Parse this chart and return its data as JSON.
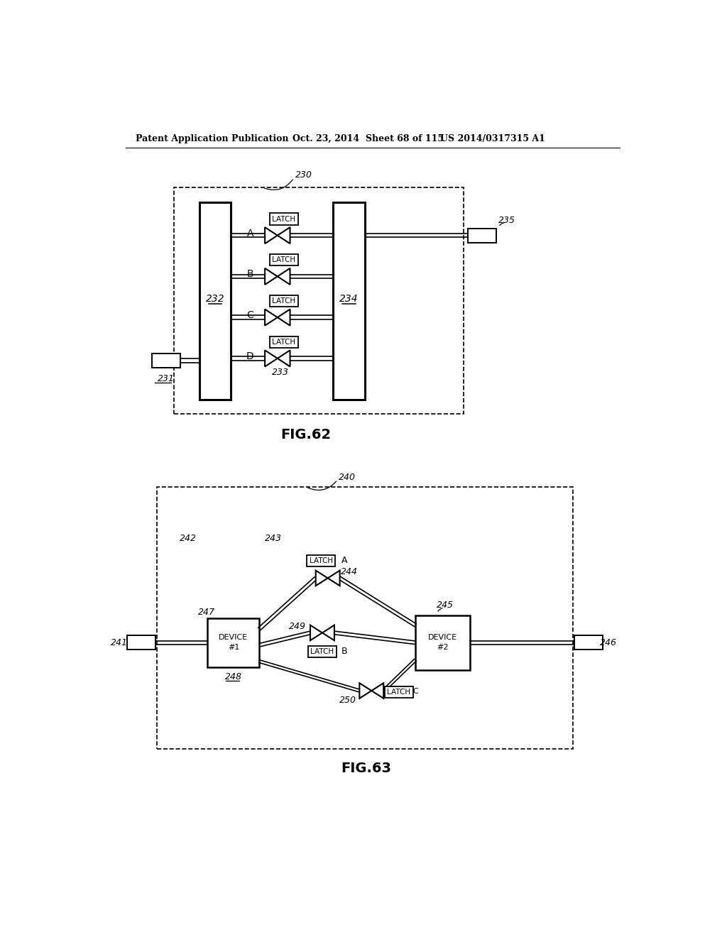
{
  "bg_color": "#ffffff",
  "header_left": "Patent Application Publication",
  "header_mid": "Oct. 23, 2014  Sheet 68 of 115",
  "header_right": "US 2014/0317315 A1",
  "fig62_label": "FIG.62",
  "fig63_label": "FIG.63",
  "fig62_ref": "230",
  "fig62_232": "232",
  "fig62_234": "234",
  "fig62_231": "231",
  "fig62_233": "233",
  "fig62_235": "235",
  "fig62_rows": [
    "A",
    "B",
    "C",
    "D"
  ],
  "fig63_ref": "240",
  "fig63_241": "241",
  "fig63_242": "242",
  "fig63_243": "243",
  "fig63_244": "244",
  "fig63_245": "245",
  "fig63_246": "246",
  "fig63_247": "247",
  "fig63_248": "248",
  "fig63_249": "249",
  "fig63_250": "250",
  "latch_label": "LATCH"
}
